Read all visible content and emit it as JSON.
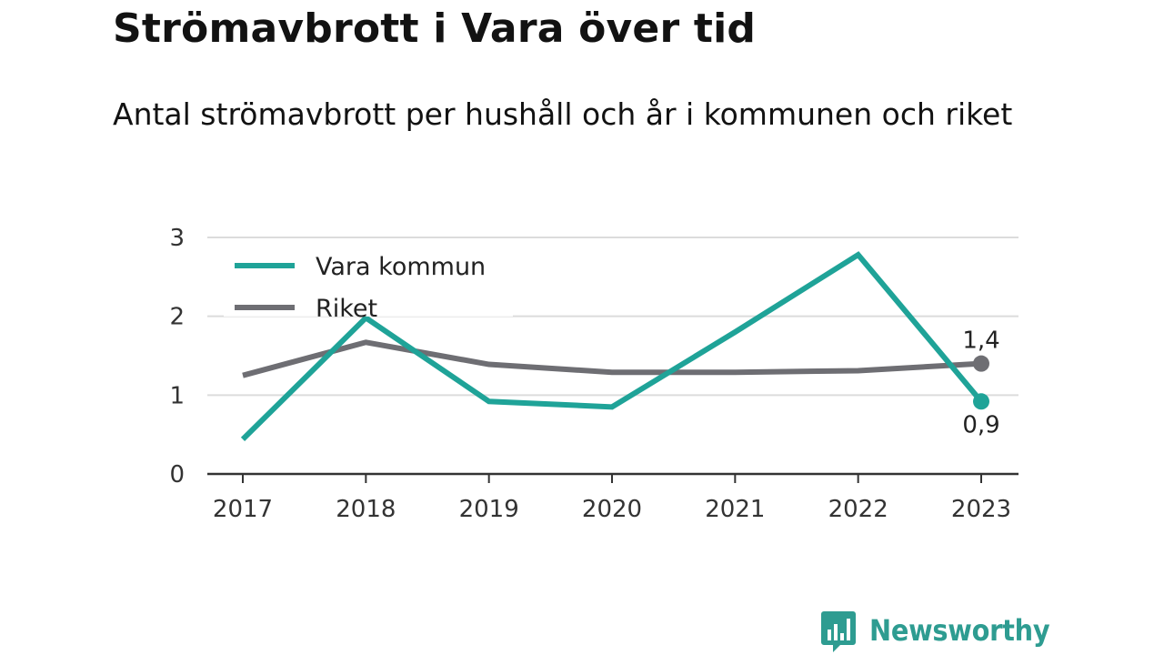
{
  "title": "Strömavbrott i Vara över tid",
  "subtitle": "Antal strömavbrott per hushåll och år i kommunen och riket",
  "brand": {
    "name": "Newsworthy",
    "icon": "newsworthy-logo-icon",
    "color": "#2e9c91"
  },
  "chart_data": {
    "type": "line",
    "title": "Strömavbrott i Vara över tid",
    "subtitle": "Antal strömavbrott per hushåll och år i kommunen och riket",
    "xlabel": "",
    "ylabel": "",
    "x": [
      "2017",
      "2018",
      "2019",
      "2020",
      "2021",
      "2022",
      "2023"
    ],
    "ylim": [
      0,
      3
    ],
    "yticks": [
      0,
      1,
      2,
      3
    ],
    "grid": true,
    "legend_placement": "top-left",
    "series": [
      {
        "name": "Vara kommun",
        "color": "#1fa398",
        "values": [
          0.44,
          1.98,
          0.92,
          0.85,
          1.8,
          2.78,
          0.92
        ],
        "end_label": "0,9"
      },
      {
        "name": "Riket",
        "color": "#6e6e73",
        "values": [
          1.25,
          1.67,
          1.39,
          1.29,
          1.29,
          1.31,
          1.4
        ],
        "end_label": "1,4"
      }
    ]
  }
}
